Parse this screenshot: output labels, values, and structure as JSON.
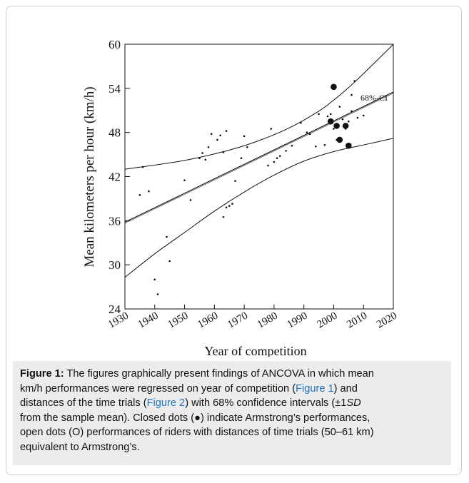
{
  "chart_data": {
    "type": "scatter",
    "xlabel": "Year of competition",
    "ylabel": "Mean kilometers per hour (km/h)",
    "xlim": [
      1930,
      2020
    ],
    "ylim": [
      24,
      60
    ],
    "x_ticks": [
      "1930",
      "1940",
      "1950",
      "1960",
      "1970",
      "1980",
      "1990",
      "2000",
      "2010",
      "2020"
    ],
    "y_ticks": [
      "24",
      "30",
      "36",
      "42",
      "48",
      "54",
      "60"
    ],
    "annotation": "68%-CI",
    "regression": {
      "x": [
        1930,
        2020
      ],
      "y": [
        35.8,
        53.5
      ]
    },
    "ci_upper": {
      "x": [
        1930,
        1950,
        1965,
        1975,
        1985,
        1995,
        2000,
        2005,
        2010,
        2015,
        2020
      ],
      "y": [
        43.0,
        44.2,
        45.6,
        46.9,
        48.6,
        50.9,
        52.4,
        54.1,
        56.0,
        58.0,
        60.0
      ]
    },
    "ci_lower": {
      "x": [
        1930,
        1940,
        1950,
        1960,
        1970,
        1980,
        1990,
        2000,
        2010,
        2020
      ],
      "y": [
        28.3,
        31.5,
        34.4,
        37.3,
        39.9,
        42.2,
        44.1,
        45.4,
        46.3,
        47.2
      ]
    },
    "series": [
      {
        "marker": "small-dot",
        "x": [
          1935,
          1936,
          1938,
          1940,
          1941,
          1944,
          1945,
          1950,
          1952,
          1955,
          1956,
          1957,
          1958,
          1959,
          1961,
          1962,
          1963,
          1963,
          1964,
          1964,
          1965,
          1966,
          1967,
          1969,
          1970,
          1971,
          1978,
          1979,
          1980,
          1981,
          1982,
          1984,
          1986,
          1989,
          1991,
          1992,
          1994,
          1995,
          1997,
          1998,
          1999,
          2000,
          2001,
          2002,
          2003,
          2004,
          2005,
          2006,
          2006,
          2007,
          2008,
          2010
        ],
        "y": [
          39.5,
          43.3,
          40.0,
          28.0,
          26.0,
          33.8,
          30.5,
          41.5,
          38.8,
          44.5,
          45.2,
          44.3,
          46.0,
          47.8,
          47.0,
          47.6,
          45.3,
          36.5,
          48.2,
          37.8,
          38.0,
          38.3,
          41.4,
          44.5,
          47.5,
          46.0,
          43.5,
          48.5,
          44.0,
          44.5,
          44.8,
          45.5,
          46.2,
          49.3,
          48.0,
          47.8,
          46.1,
          50.5,
          46.3,
          50.2,
          50.5,
          48.5,
          47.0,
          51.5,
          49.8,
          48.5,
          49.5,
          50.9,
          53.1,
          55.0,
          50.0,
          50.3
        ]
      },
      {
        "marker": "large-dot",
        "x": [
          2000,
          2001,
          2002,
          2004,
          2005,
          1999
        ],
        "y": [
          54.2,
          48.9,
          47.0,
          48.9,
          46.2,
          49.5
        ]
      }
    ]
  },
  "caption": {
    "title": "Figure 1:",
    "line1": " The figures graphically present findings of ANCOVA in which mean",
    "line2a": "km/h performances were regressed on year of competition (",
    "ref1": "Figure 1",
    "line2b": ") and",
    "line3a": "distances of the time trials (",
    "ref2": "Figure 2",
    "line3b": ") with 68% confidence intervals (±1",
    "sd": "SD",
    "line4": "from the sample mean). Closed dots (●) indicate Armstrong’s performances,",
    "line5": "open dots (O) performances of riders with distances of time trials (50–61 km)",
    "line6": "equivalent to Armstrong’s."
  }
}
